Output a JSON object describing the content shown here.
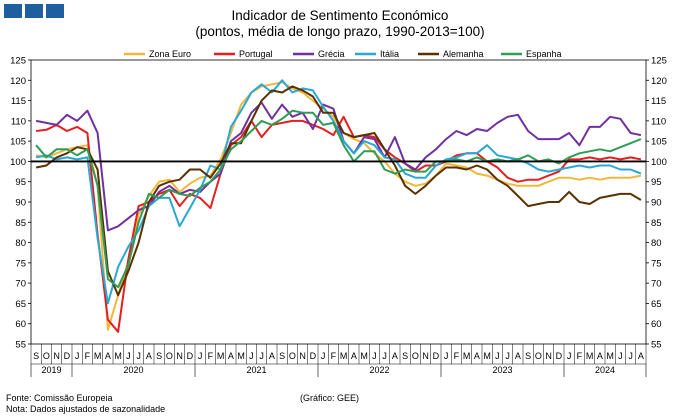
{
  "title": "Indicador de Sentimento Económico",
  "subtitle": "(pontos, média de longo prazo, 1990-2013=100)",
  "source": "Fonte: Comissão Europeia",
  "note": "Nota: Dados ajustados de sazonalidade",
  "graph_credit": "(Gráfico: GEE)",
  "chart_data": {
    "type": "line",
    "title": "Indicador de Sentimento Económico",
    "subtitle": "(pontos, média de longo prazo, 1990-2013=100)",
    "ylim": [
      55,
      125
    ],
    "yticks": [
      55,
      60,
      65,
      70,
      75,
      80,
      85,
      90,
      95,
      100,
      105,
      110,
      115,
      120,
      125
    ],
    "reference_line": 100,
    "legend_position": "top",
    "grid": false,
    "months": [
      "S",
      "O",
      "N",
      "D",
      "J",
      "F",
      "M",
      "A",
      "M",
      "J",
      "J",
      "A",
      "S",
      "O",
      "N",
      "D",
      "J",
      "F",
      "M",
      "A",
      "M",
      "J",
      "J",
      "A",
      "S",
      "O",
      "N",
      "D",
      "J",
      "F",
      "M",
      "A",
      "M",
      "J",
      "J",
      "A",
      "S",
      "O",
      "N",
      "D",
      "J",
      "F",
      "M",
      "A",
      "M",
      "J",
      "J",
      "A",
      "S",
      "O",
      "N",
      "D",
      "J",
      "F",
      "M",
      "A",
      "M",
      "J",
      "J",
      "A"
    ],
    "years": [
      {
        "label": "2019",
        "start": 0,
        "end": 4
      },
      {
        "label": "2020",
        "start": 4,
        "end": 16
      },
      {
        "label": "2021",
        "start": 16,
        "end": 28
      },
      {
        "label": "2022",
        "start": 28,
        "end": 40
      },
      {
        "label": "2023",
        "start": 40,
        "end": 52
      },
      {
        "label": "2024",
        "start": 52,
        "end": 60
      }
    ],
    "series": [
      {
        "name": "Zona Euro",
        "color": "#f0b73a",
        "values": [
          101.5,
          101.0,
          102.0,
          103.0,
          103.5,
          104.0,
          94,
          58.5,
          67,
          75.5,
          87,
          91.5,
          95,
          95.5,
          92.5,
          94.5,
          96,
          96.5,
          100.5,
          107,
          114,
          117,
          118.5,
          119,
          119.5,
          118,
          117,
          115,
          113,
          111,
          107,
          105.5,
          104.5,
          102,
          100,
          97,
          95,
          94,
          94.5,
          96.5,
          99.5,
          99,
          98.5,
          97,
          96.5,
          95.5,
          94.5,
          94,
          94,
          94,
          95,
          96,
          96,
          95.5,
          96,
          95.5,
          96,
          96,
          96,
          96.5
        ]
      },
      {
        "name": "Portugal",
        "color": "#e51f1f",
        "values": [
          107.5,
          107.8,
          109,
          107.5,
          108.5,
          107,
          82,
          61,
          58,
          76,
          89,
          90,
          92,
          93,
          89,
          92,
          91,
          88.5,
          97,
          104,
          106,
          110,
          106,
          109,
          109.5,
          110,
          110,
          109,
          108,
          106.5,
          111,
          106,
          106.5,
          106,
          103,
          101,
          99.5,
          97.5,
          99,
          99,
          100,
          101.5,
          102,
          102,
          100,
          98.5,
          96,
          95,
          95.5,
          95.5,
          96.5,
          97.5,
          100.5,
          100.5,
          101,
          100.5,
          101,
          100.5,
          101,
          100.5
        ]
      },
      {
        "name": "Grécia",
        "color": "#7030a0",
        "values": [
          110,
          109.5,
          109,
          111.5,
          110,
          112.5,
          107,
          83,
          84,
          86,
          88,
          89,
          92.5,
          94,
          92,
          93,
          92.5,
          95,
          97,
          105,
          107,
          112,
          114.5,
          110.5,
          114,
          111,
          112,
          108,
          114,
          113,
          105,
          102,
          106,
          105.5,
          101,
          106,
          99.5,
          98,
          101,
          103,
          105.5,
          107.5,
          106.5,
          108,
          107.5,
          109.5,
          111,
          111.5,
          107.5,
          105.5,
          105.5,
          105.5,
          107,
          104,
          108.5,
          108.5,
          111,
          110.5,
          107,
          106.5
        ]
      },
      {
        "name": "Itália",
        "color": "#2aa7d6",
        "values": [
          101,
          101.5,
          100.5,
          101,
          100.5,
          101,
          81,
          65,
          74,
          79,
          83,
          89,
          91,
          91,
          84,
          88.5,
          93,
          99,
          98,
          108.5,
          112.5,
          117,
          119,
          117,
          120,
          117,
          118,
          117.5,
          113.5,
          110,
          105,
          102,
          105,
          104,
          101,
          100.5,
          97,
          96,
          96,
          99,
          100.5,
          101,
          102,
          102,
          104,
          101.5,
          101,
          100.5,
          99.5,
          98,
          97.5,
          98,
          98.5,
          99,
          98.5,
          99,
          99,
          98,
          98,
          97
        ]
      },
      {
        "name": "Alemanha",
        "color": "#5a3100",
        "values": [
          98.5,
          99,
          101,
          102,
          103.5,
          103,
          98,
          73,
          67,
          73,
          80,
          90,
          94,
          95,
          95.5,
          98,
          98,
          96,
          99.5,
          104.5,
          104.5,
          110,
          115,
          117.5,
          117,
          118.5,
          117.5,
          116,
          112,
          112,
          107,
          106,
          106.5,
          107,
          103,
          99,
          94,
          92,
          94,
          96.5,
          98.5,
          98.5,
          98,
          99,
          98,
          95.5,
          94,
          91.5,
          89,
          89.5,
          90,
          90,
          92.5,
          90,
          89.5,
          91,
          91.5,
          92,
          92,
          90.5
        ]
      },
      {
        "name": "Espanha",
        "color": "#2e9d56",
        "values": [
          104,
          101,
          103,
          103,
          101.5,
          103,
          94,
          71,
          69,
          74.5,
          85,
          92,
          91,
          93,
          92,
          91.5,
          93.5,
          95,
          98,
          103,
          105,
          107.5,
          110,
          109,
          110.5,
          112.5,
          112,
          112,
          109,
          109.5,
          104,
          100,
          102.5,
          102.5,
          98,
          97,
          98,
          97.5,
          97.5,
          100,
          100,
          100.5,
          100,
          101,
          100,
          100.5,
          100,
          100.5,
          101.5,
          100,
          100.5,
          99.5,
          101,
          102,
          102.5,
          103,
          102.5,
          103.5,
          104.5,
          105.5
        ]
      }
    ]
  }
}
